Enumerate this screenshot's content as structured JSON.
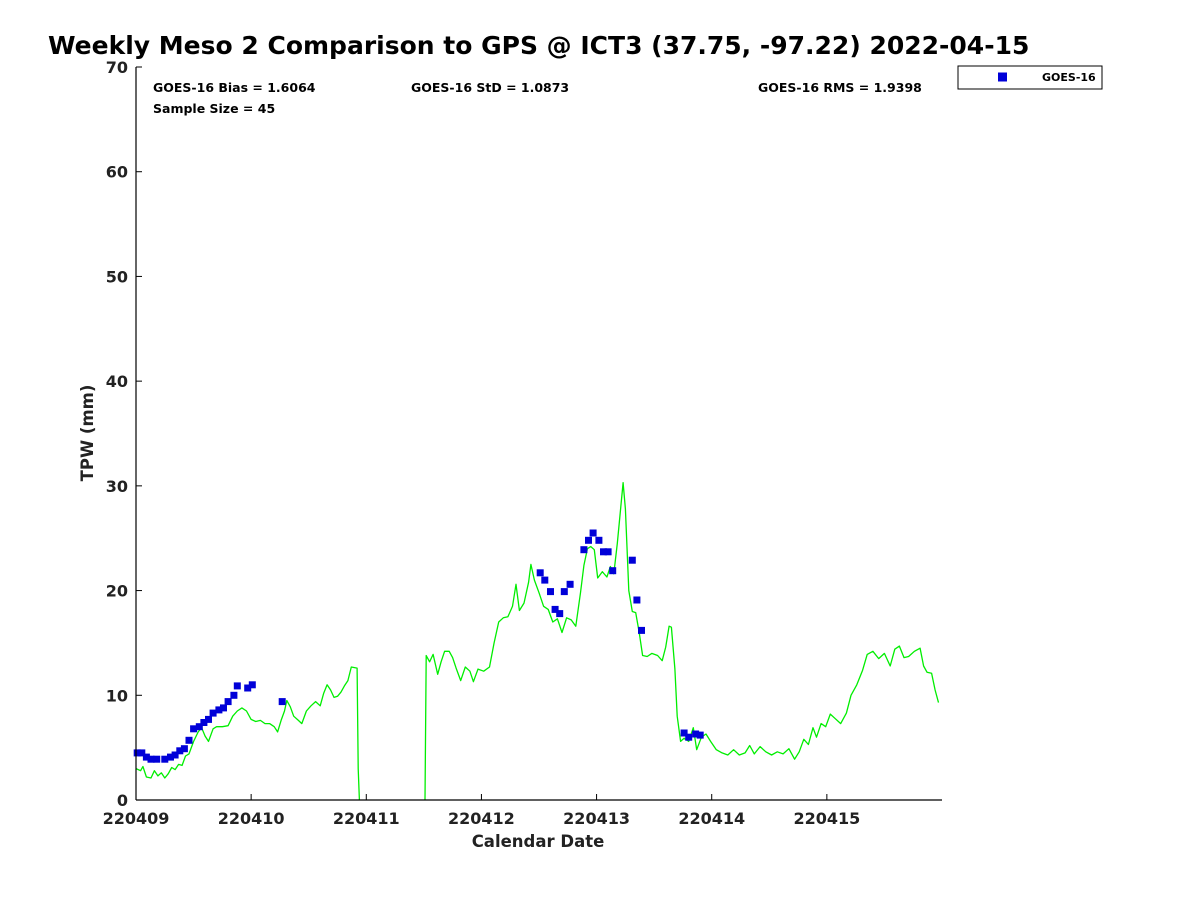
{
  "chart_data": {
    "type": "scatter",
    "title": "Weekly Meso 2 Comparison to GPS @ ICT3 (37.75, -97.22) 2022-04-15",
    "xlabel": "Calendar Date",
    "ylabel": "TPW (mm)",
    "xlim": [
      0,
      7
    ],
    "ylim": [
      0,
      70
    ],
    "y_ticks": [
      0,
      10,
      20,
      30,
      40,
      50,
      60,
      70
    ],
    "x_ticks": [
      {
        "x": 0,
        "label": "220409"
      },
      {
        "x": 1,
        "label": "220410"
      },
      {
        "x": 2,
        "label": "220411"
      },
      {
        "x": 3,
        "label": "220412"
      },
      {
        "x": 4,
        "label": "220413"
      },
      {
        "x": 5,
        "label": "220414"
      },
      {
        "x": 6,
        "label": "220415"
      }
    ],
    "grid": false,
    "legend": {
      "placement": "top-right, outside plot",
      "entries": [
        "GOES-16"
      ]
    },
    "stats": {
      "bias": "GOES-16 Bias = 1.6064",
      "std": "GOES-16 StD = 1.0873",
      "rms": "GOES-16 RMS = 1.9398",
      "sample_size": "Sample Size = 45"
    },
    "series": [
      {
        "name": "GOES-16",
        "kind": "scatter",
        "marker": "square",
        "color": "#0000d8",
        "points": [
          [
            0.01,
            4.5
          ],
          [
            0.05,
            4.5
          ],
          [
            0.09,
            4.1
          ],
          [
            0.13,
            3.9
          ],
          [
            0.18,
            3.9
          ],
          [
            0.25,
            3.9
          ],
          [
            0.3,
            4.1
          ],
          [
            0.34,
            4.3
          ],
          [
            0.38,
            4.7
          ],
          [
            0.42,
            4.9
          ],
          [
            0.46,
            5.7
          ],
          [
            0.5,
            6.8
          ],
          [
            0.55,
            7.0
          ],
          [
            0.59,
            7.4
          ],
          [
            0.63,
            7.7
          ],
          [
            0.67,
            8.3
          ],
          [
            0.72,
            8.6
          ],
          [
            0.76,
            8.8
          ],
          [
            0.8,
            9.4
          ],
          [
            0.85,
            10.0
          ],
          [
            0.88,
            10.9
          ],
          [
            0.97,
            10.7
          ],
          [
            1.01,
            11.0
          ],
          [
            1.27,
            9.4
          ],
          [
            3.51,
            21.7
          ],
          [
            3.55,
            21.0
          ],
          [
            3.6,
            19.9
          ],
          [
            3.64,
            18.2
          ],
          [
            3.68,
            17.8
          ],
          [
            3.72,
            19.9
          ],
          [
            3.77,
            20.6
          ],
          [
            3.89,
            23.9
          ],
          [
            3.93,
            24.8
          ],
          [
            3.97,
            25.5
          ],
          [
            4.02,
            24.8
          ],
          [
            4.06,
            23.7
          ],
          [
            4.1,
            23.7
          ],
          [
            4.14,
            21.9
          ],
          [
            4.31,
            22.9
          ],
          [
            4.35,
            19.1
          ],
          [
            4.39,
            16.2
          ],
          [
            4.76,
            6.4
          ],
          [
            4.8,
            6.0
          ],
          [
            4.86,
            6.3
          ],
          [
            4.9,
            6.2
          ]
        ]
      },
      {
        "name": "GPS",
        "kind": "line",
        "color": "#00ee00",
        "segments": [
          [
            [
              0.0,
              3.0
            ],
            [
              0.04,
              2.8
            ],
            [
              0.06,
              3.2
            ],
            [
              0.09,
              2.2
            ],
            [
              0.13,
              2.1
            ],
            [
              0.16,
              2.8
            ],
            [
              0.19,
              2.3
            ],
            [
              0.22,
              2.6
            ],
            [
              0.25,
              2.1
            ],
            [
              0.28,
              2.5
            ],
            [
              0.31,
              3.1
            ],
            [
              0.34,
              2.9
            ],
            [
              0.37,
              3.4
            ],
            [
              0.4,
              3.3
            ],
            [
              0.43,
              4.2
            ],
            [
              0.46,
              4.4
            ],
            [
              0.5,
              5.6
            ],
            [
              0.54,
              6.5
            ],
            [
              0.57,
              6.9
            ],
            [
              0.6,
              6.1
            ],
            [
              0.63,
              5.6
            ],
            [
              0.67,
              6.8
            ],
            [
              0.7,
              7.0
            ],
            [
              0.75,
              7.0
            ],
            [
              0.8,
              7.1
            ],
            [
              0.84,
              8.0
            ],
            [
              0.88,
              8.5
            ],
            [
              0.92,
              8.8
            ],
            [
              0.96,
              8.5
            ],
            [
              1.0,
              7.7
            ],
            [
              1.04,
              7.5
            ],
            [
              1.08,
              7.6
            ],
            [
              1.12,
              7.3
            ],
            [
              1.16,
              7.3
            ],
            [
              1.2,
              7.0
            ],
            [
              1.23,
              6.5
            ],
            [
              1.26,
              7.6
            ],
            [
              1.29,
              8.5
            ],
            [
              1.31,
              9.5
            ],
            [
              1.34,
              8.9
            ],
            [
              1.37,
              8.0
            ],
            [
              1.41,
              7.6
            ],
            [
              1.44,
              7.3
            ],
            [
              1.48,
              8.5
            ],
            [
              1.52,
              9.0
            ],
            [
              1.56,
              9.4
            ],
            [
              1.6,
              9.0
            ],
            [
              1.63,
              10.2
            ],
            [
              1.66,
              11.0
            ],
            [
              1.69,
              10.5
            ],
            [
              1.72,
              9.8
            ],
            [
              1.75,
              9.9
            ],
            [
              1.78,
              10.3
            ],
            [
              1.81,
              10.9
            ],
            [
              1.84,
              11.4
            ],
            [
              1.87,
              12.7
            ],
            [
              1.92,
              12.6
            ],
            [
              1.93,
              3.0
            ],
            [
              1.94,
              0.0
            ]
          ],
          [
            [
              2.51,
              0.0
            ],
            [
              2.52,
              13.8
            ],
            [
              2.55,
              13.2
            ],
            [
              2.58,
              13.9
            ],
            [
              2.62,
              12.0
            ],
            [
              2.65,
              13.2
            ],
            [
              2.68,
              14.2
            ],
            [
              2.72,
              14.2
            ],
            [
              2.75,
              13.6
            ],
            [
              2.78,
              12.6
            ],
            [
              2.82,
              11.4
            ],
            [
              2.86,
              12.7
            ],
            [
              2.9,
              12.3
            ],
            [
              2.93,
              11.3
            ],
            [
              2.97,
              12.5
            ],
            [
              3.02,
              12.3
            ],
            [
              3.07,
              12.7
            ],
            [
              3.11,
              15.0
            ],
            [
              3.15,
              17.0
            ],
            [
              3.19,
              17.4
            ],
            [
              3.23,
              17.5
            ],
            [
              3.27,
              18.5
            ],
            [
              3.3,
              20.6
            ],
            [
              3.33,
              18.1
            ],
            [
              3.37,
              18.8
            ],
            [
              3.41,
              20.8
            ],
            [
              3.43,
              22.5
            ],
            [
              3.46,
              21.0
            ],
            [
              3.5,
              19.8
            ],
            [
              3.54,
              18.5
            ],
            [
              3.58,
              18.2
            ],
            [
              3.62,
              17.0
            ],
            [
              3.66,
              17.3
            ],
            [
              3.7,
              16.0
            ],
            [
              3.74,
              17.4
            ],
            [
              3.78,
              17.2
            ],
            [
              3.82,
              16.6
            ],
            [
              3.86,
              19.8
            ],
            [
              3.89,
              22.4
            ],
            [
              3.92,
              24.0
            ],
            [
              3.95,
              24.2
            ],
            [
              3.98,
              23.9
            ],
            [
              4.01,
              21.2
            ],
            [
              4.05,
              21.8
            ],
            [
              4.09,
              21.3
            ],
            [
              4.12,
              22.3
            ],
            [
              4.15,
              21.6
            ],
            [
              4.18,
              24.5
            ],
            [
              4.21,
              28.0
            ],
            [
              4.23,
              30.3
            ],
            [
              4.25,
              27.8
            ],
            [
              4.28,
              20.0
            ],
            [
              4.31,
              18.0
            ],
            [
              4.34,
              17.9
            ],
            [
              4.37,
              16.0
            ],
            [
              4.4,
              13.8
            ],
            [
              4.44,
              13.7
            ],
            [
              4.48,
              14.0
            ],
            [
              4.53,
              13.8
            ],
            [
              4.57,
              13.3
            ],
            [
              4.6,
              14.6
            ],
            [
              4.63,
              16.6
            ],
            [
              4.65,
              16.5
            ],
            [
              4.68,
              12.5
            ],
            [
              4.7,
              8.0
            ],
            [
              4.73,
              5.6
            ],
            [
              4.76,
              5.9
            ],
            [
              4.8,
              5.6
            ],
            [
              4.84,
              6.9
            ],
            [
              4.87,
              4.8
            ],
            [
              4.91,
              6.0
            ],
            [
              4.95,
              6.3
            ],
            [
              4.99,
              5.6
            ],
            [
              5.04,
              4.8
            ],
            [
              5.09,
              4.5
            ],
            [
              5.14,
              4.3
            ],
            [
              5.19,
              4.8
            ],
            [
              5.24,
              4.3
            ],
            [
              5.29,
              4.5
            ],
            [
              5.33,
              5.2
            ],
            [
              5.37,
              4.4
            ],
            [
              5.42,
              5.1
            ],
            [
              5.47,
              4.6
            ],
            [
              5.52,
              4.3
            ],
            [
              5.57,
              4.6
            ],
            [
              5.62,
              4.4
            ],
            [
              5.67,
              4.9
            ],
            [
              5.72,
              3.9
            ],
            [
              5.76,
              4.6
            ],
            [
              5.8,
              5.8
            ],
            [
              5.84,
              5.3
            ],
            [
              5.88,
              6.9
            ],
            [
              5.91,
              6.0
            ],
            [
              5.95,
              7.3
            ],
            [
              5.99,
              7.0
            ],
            [
              6.03,
              8.2
            ],
            [
              6.07,
              7.8
            ],
            [
              6.12,
              7.3
            ],
            [
              6.17,
              8.3
            ],
            [
              6.21,
              10.0
            ],
            [
              6.26,
              11.0
            ],
            [
              6.31,
              12.4
            ],
            [
              6.35,
              13.9
            ],
            [
              6.4,
              14.2
            ],
            [
              6.45,
              13.5
            ],
            [
              6.5,
              14.0
            ],
            [
              6.55,
              12.8
            ],
            [
              6.59,
              14.4
            ],
            [
              6.63,
              14.7
            ],
            [
              6.67,
              13.6
            ],
            [
              6.71,
              13.7
            ],
            [
              6.76,
              14.2
            ],
            [
              6.81,
              14.5
            ],
            [
              6.84,
              12.8
            ],
            [
              6.87,
              12.2
            ],
            [
              6.91,
              12.1
            ],
            [
              6.94,
              10.5
            ],
            [
              6.97,
              9.3
            ]
          ]
        ]
      }
    ]
  }
}
